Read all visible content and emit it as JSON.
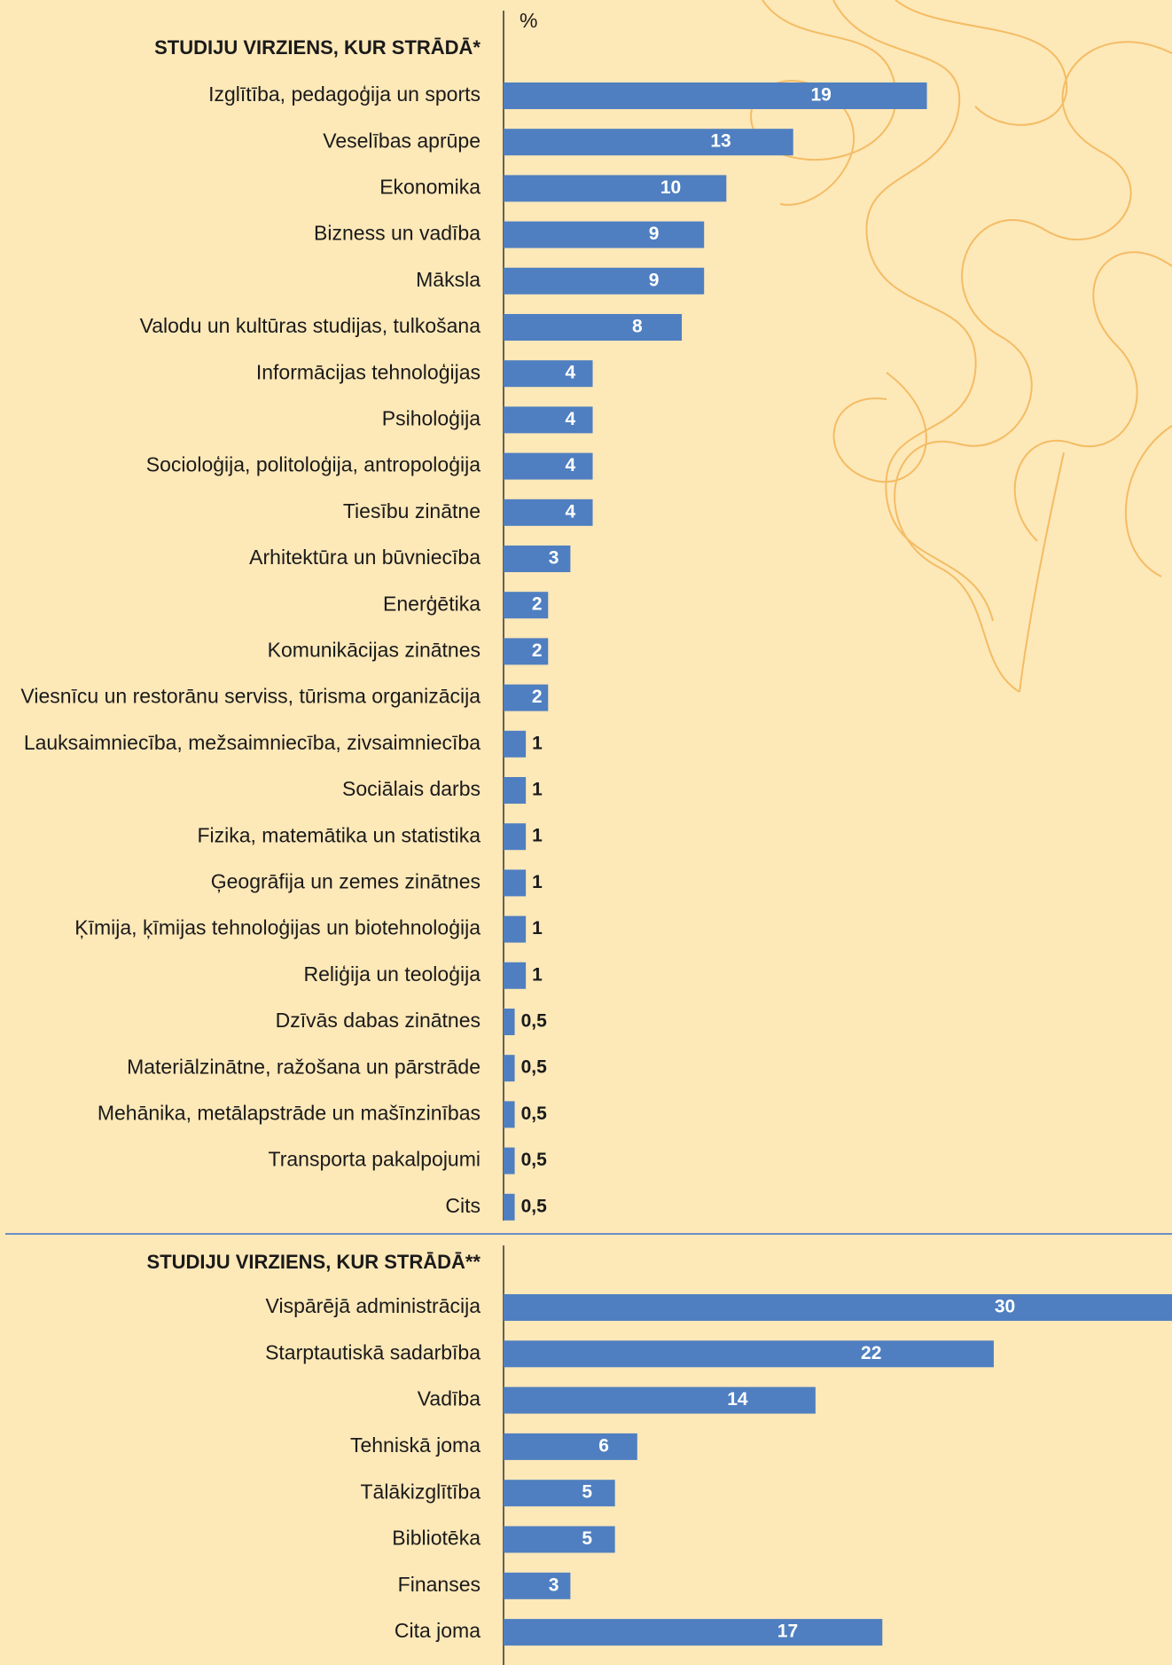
{
  "chart_data": [
    {
      "type": "bar",
      "orientation": "horizontal",
      "title": "STUDIJU VIRZIENS, KUR STRĀDĀ*",
      "value_axis_label": "%",
      "color": "#4f7fc0",
      "xlim": [
        0,
        30
      ],
      "categories": [
        "Izglītība, pedagoģija un sports",
        "Veselības aprūpe",
        "Ekonomika",
        "Bizness un vadība",
        "Māksla",
        "Valodu un kultūras studijas, tulkošana",
        "Informācijas tehnoloģijas",
        "Psiholoģija",
        "Socioloģija, politoloģija, antropoloģija",
        "Tiesību zinātne",
        "Arhitektūra un būvniecība",
        "Enerģētika",
        "Komunikācijas zinātnes",
        "Viesnīcu un restorānu serviss, tūrisma organizācija",
        "Lauksaimniecība, mežsaimniecība, zivsaimniecība",
        "Sociālais darbs",
        "Fizika, matemātika un statistika",
        "Ģeogrāfija un zemes zinātnes",
        "Ķīmija, ķīmijas tehnoloģijas un biotehnoloģija",
        "Reliģija un teoloģija",
        "Dzīvās dabas zinātnes",
        "Materiālzinātne, ražošana un pārstrāde",
        "Mehānika, metālapstrāde un mašīnzinības",
        "Transporta pakalpojumi",
        "Cits"
      ],
      "values": [
        19,
        13,
        10,
        9,
        9,
        8,
        4,
        4,
        4,
        4,
        3,
        2,
        2,
        2,
        1,
        1,
        1,
        1,
        1,
        1,
        0.5,
        0.5,
        0.5,
        0.5,
        0.5
      ],
      "value_labels": [
        "19",
        "13",
        "10",
        "9",
        "9",
        "8",
        "4",
        "4",
        "4",
        "4",
        "3",
        "2",
        "2",
        "2",
        "1",
        "1",
        "1",
        "1",
        "1",
        "1",
        "0,5",
        "0,5",
        "0,5",
        "0,5",
        "0,5"
      ]
    },
    {
      "type": "bar",
      "orientation": "horizontal",
      "title": "STUDIJU VIRZIENS, KUR STRĀDĀ**",
      "color": "#4f7fc0",
      "xlim": [
        0,
        30
      ],
      "categories": [
        "Vispārējā administrācija",
        "Starptautiskā sadarbība",
        "Vadība",
        "Tehniskā joma",
        "Tālākizglītība",
        "Bibliotēka",
        "Finanses",
        "Cita joma"
      ],
      "values": [
        30,
        22,
        14,
        6,
        5,
        5,
        3,
        17
      ],
      "value_labels": [
        "30",
        "22",
        "14",
        "6",
        "5",
        "5",
        "3",
        "17"
      ]
    }
  ]
}
